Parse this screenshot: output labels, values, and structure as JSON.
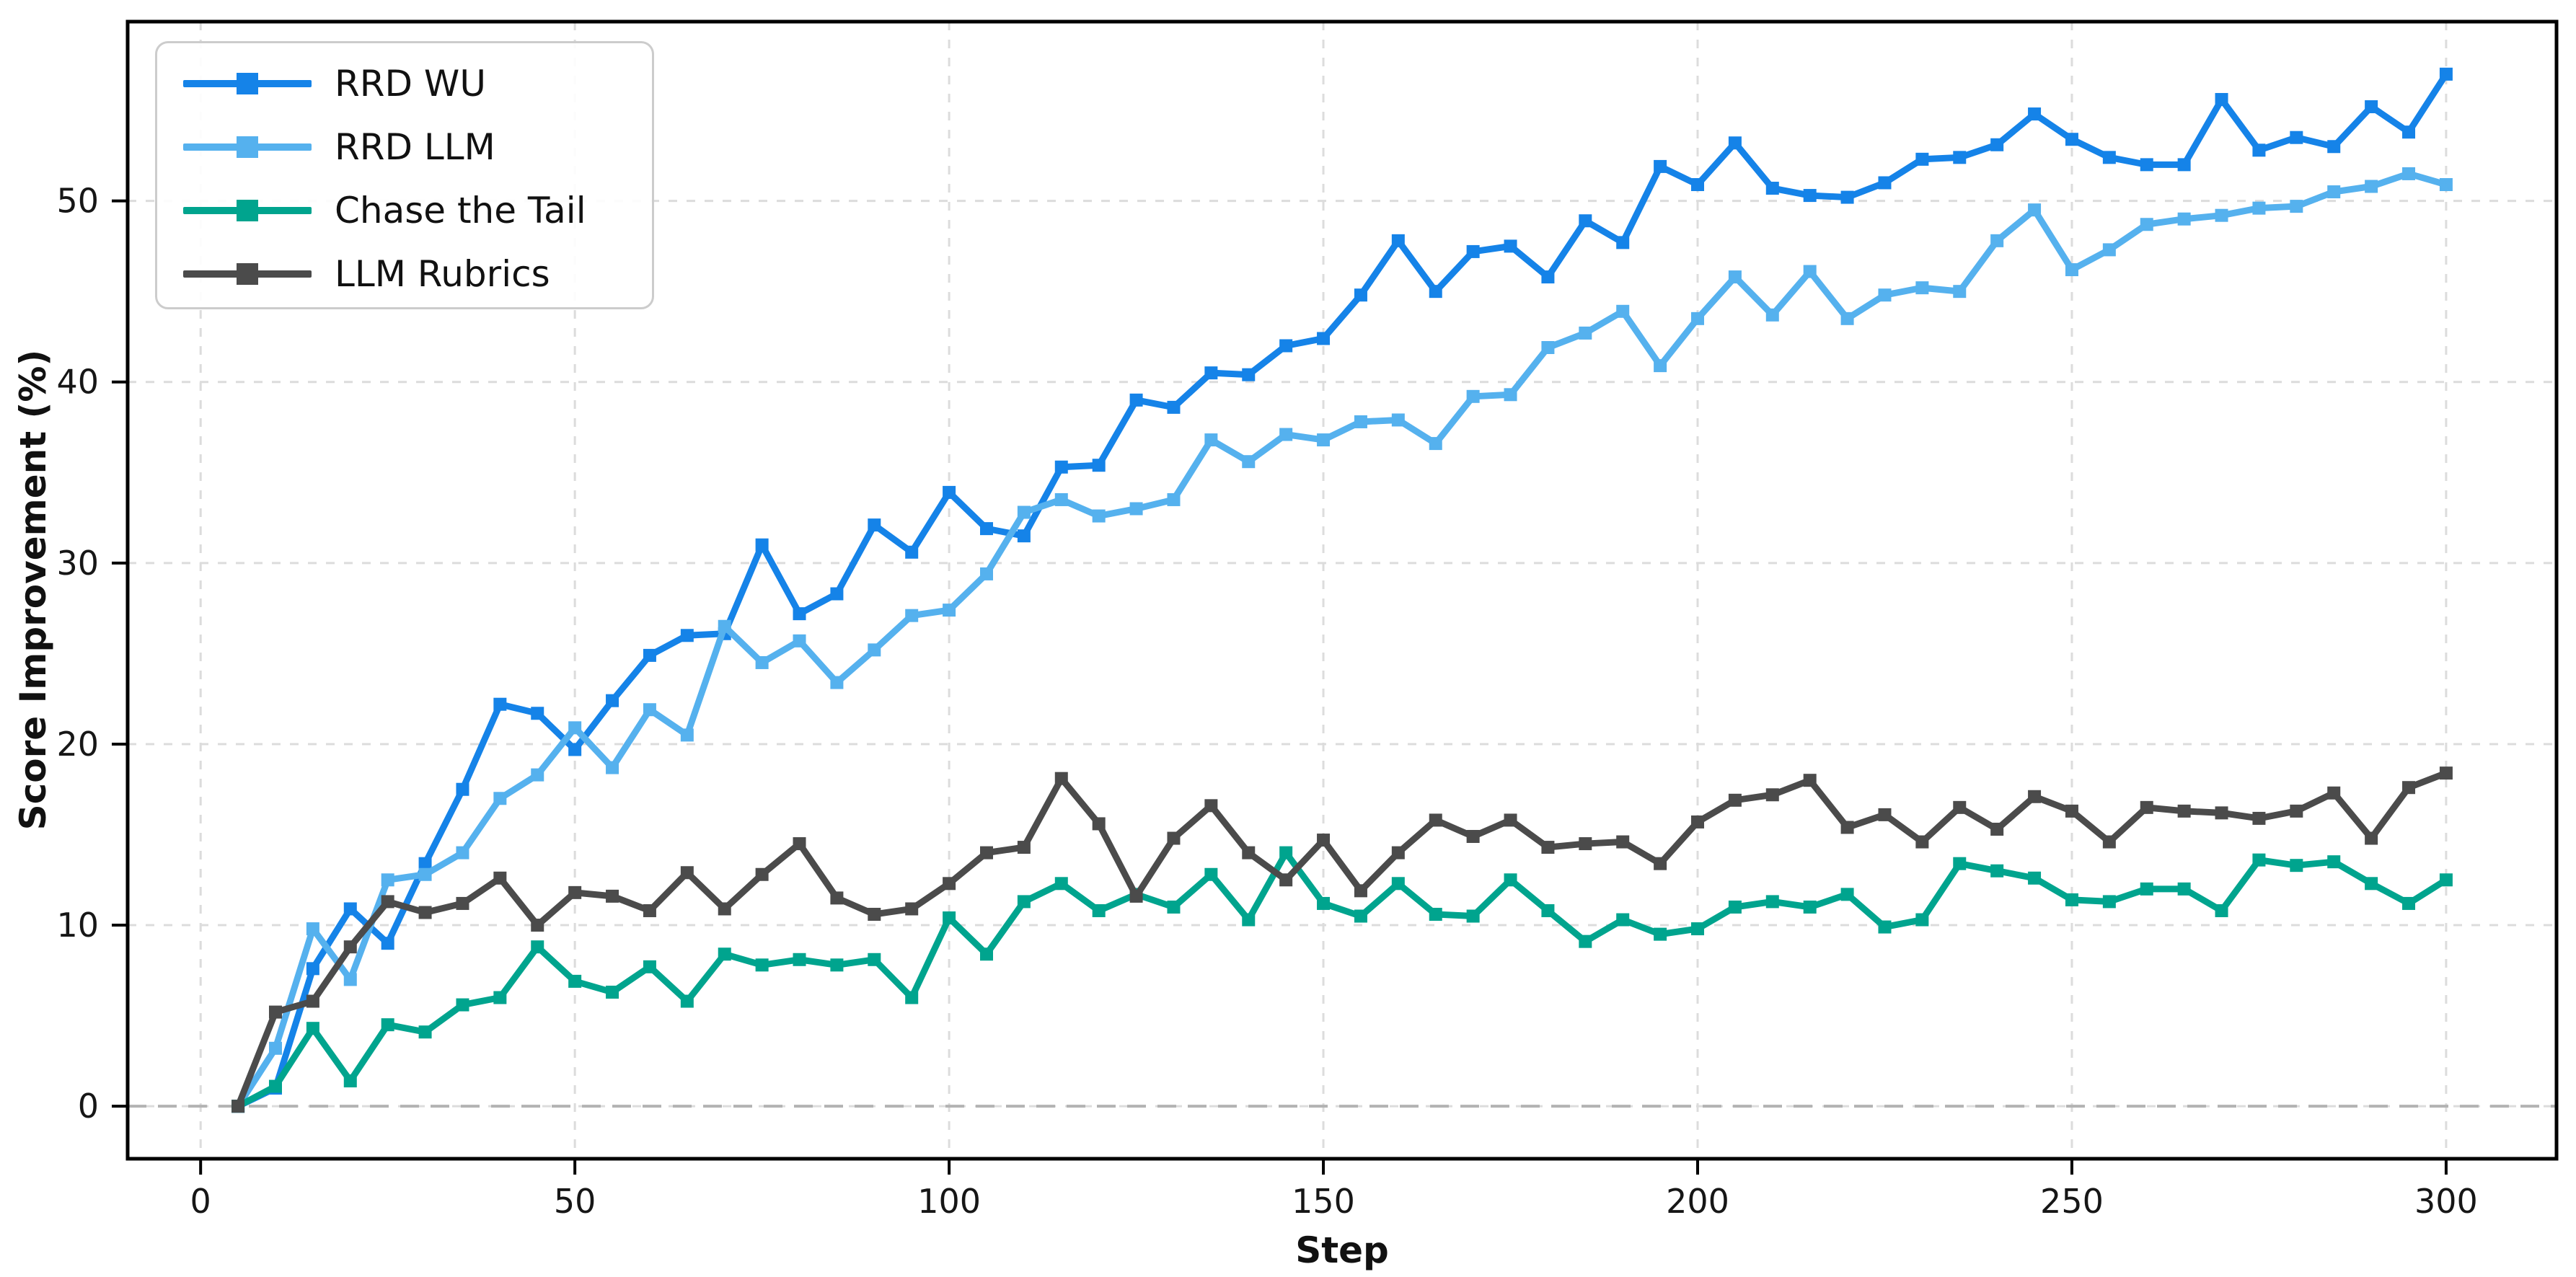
{
  "figure": {
    "background": "#ffffff",
    "spine_color": "#000000",
    "tick_label_color": "#161616",
    "grid": {
      "color": "#dcdcdc",
      "width": 3,
      "dash": "12 13"
    },
    "zero_line": {
      "color": "#b3b3b3",
      "width": 4,
      "dash": "26 16"
    }
  },
  "chart_data": {
    "type": "line",
    "title": "",
    "xlabel": "Step",
    "ylabel": "Score Improvement (%)",
    "xlim": [
      -9.75,
      314.75
    ],
    "ylim": [
      -2.9,
      59.9
    ],
    "xticks": [
      0,
      50,
      100,
      150,
      200,
      250,
      300
    ],
    "yticks": [
      0,
      10,
      20,
      30,
      40,
      50
    ],
    "grid": true,
    "zero_line": true,
    "marker": "square",
    "legend_position": "upper left",
    "x": [
      5,
      10,
      15,
      20,
      25,
      30,
      35,
      40,
      45,
      50,
      55,
      60,
      65,
      70,
      75,
      80,
      85,
      90,
      95,
      100,
      105,
      110,
      115,
      120,
      125,
      130,
      135,
      140,
      145,
      150,
      155,
      160,
      165,
      170,
      175,
      180,
      185,
      190,
      195,
      200,
      205,
      210,
      215,
      220,
      225,
      230,
      235,
      240,
      245,
      250,
      255,
      260,
      265,
      270,
      275,
      280,
      285,
      290,
      295,
      300
    ],
    "series": [
      {
        "name": "RRD WU",
        "color": "#1583e8",
        "values": [
          0,
          1.0,
          7.6,
          10.9,
          9.0,
          13.4,
          17.5,
          22.2,
          21.7,
          19.7,
          22.4,
          24.9,
          26.0,
          26.1,
          31.0,
          27.2,
          28.3,
          32.1,
          30.6,
          33.9,
          31.9,
          31.5,
          35.3,
          35.4,
          39.0,
          38.6,
          40.5,
          40.4,
          42.0,
          42.4,
          44.8,
          47.8,
          45.0,
          47.2,
          47.5,
          45.8,
          48.9,
          47.7,
          51.9,
          50.9,
          53.2,
          50.7,
          50.3,
          50.2,
          51.0,
          52.3,
          52.4,
          53.1,
          54.8,
          53.4,
          52.4,
          52.0,
          52.0,
          55.6,
          52.8,
          53.5,
          53.0,
          55.2,
          53.8,
          57.0
        ]
      },
      {
        "name": "RRD LLM",
        "color": "#55b1ee",
        "values": [
          0,
          3.2,
          9.8,
          7.0,
          12.5,
          12.8,
          14.0,
          17.0,
          18.3,
          20.9,
          18.7,
          21.9,
          20.5,
          26.5,
          24.5,
          25.7,
          23.4,
          25.2,
          27.1,
          27.4,
          29.4,
          32.8,
          33.5,
          32.6,
          33.0,
          33.5,
          36.8,
          35.6,
          37.1,
          36.8,
          37.8,
          37.9,
          36.6,
          39.2,
          39.3,
          41.9,
          42.7,
          43.9,
          40.9,
          43.5,
          45.8,
          43.7,
          46.1,
          43.5,
          44.8,
          45.2,
          45.0,
          47.8,
          49.5,
          46.2,
          47.3,
          48.7,
          49.0,
          49.2,
          49.6,
          49.7,
          50.5,
          50.8,
          51.5,
          50.9
        ]
      },
      {
        "name": "Chase the Tail",
        "color": "#00a48e",
        "values": [
          0,
          1.1,
          4.3,
          1.4,
          4.5,
          4.1,
          5.6,
          6.0,
          8.8,
          6.9,
          6.3,
          7.7,
          5.8,
          8.4,
          7.8,
          8.1,
          7.8,
          8.1,
          6.0,
          10.4,
          8.4,
          11.3,
          12.3,
          10.8,
          11.7,
          11.0,
          12.8,
          10.3,
          14.0,
          11.2,
          10.5,
          12.3,
          10.6,
          10.5,
          12.5,
          10.8,
          9.1,
          10.3,
          9.5,
          9.8,
          11.0,
          11.3,
          11.0,
          11.7,
          9.9,
          10.3,
          13.4,
          13.0,
          12.6,
          11.4,
          11.3,
          12.0,
          12.0,
          10.8,
          13.6,
          13.3,
          13.5,
          12.3,
          11.2,
          12.5
        ]
      },
      {
        "name": "LLM Rubrics",
        "color": "#4b4b4b",
        "values": [
          0,
          5.2,
          5.8,
          8.8,
          11.3,
          10.7,
          11.2,
          12.6,
          10.0,
          11.8,
          11.6,
          10.8,
          12.9,
          10.9,
          12.8,
          14.5,
          11.5,
          10.6,
          10.9,
          12.3,
          14.0,
          14.3,
          18.1,
          15.6,
          11.6,
          14.8,
          16.6,
          14.0,
          12.5,
          14.7,
          11.9,
          14.0,
          15.8,
          14.9,
          15.8,
          14.3,
          14.5,
          14.6,
          13.4,
          15.7,
          16.9,
          17.2,
          18.0,
          15.4,
          16.1,
          14.6,
          16.5,
          15.3,
          17.1,
          16.3,
          14.6,
          16.5,
          16.3,
          16.2,
          15.9,
          16.3,
          17.3,
          14.8,
          17.6,
          18.4
        ]
      }
    ]
  },
  "legend": {
    "items": [
      {
        "label": "RRD WU",
        "color": "#1583e8"
      },
      {
        "label": "RRD LLM",
        "color": "#55b1ee"
      },
      {
        "label": "Chase the Tail",
        "color": "#00a48e"
      },
      {
        "label": "LLM Rubrics",
        "color": "#4b4b4b"
      }
    ]
  }
}
